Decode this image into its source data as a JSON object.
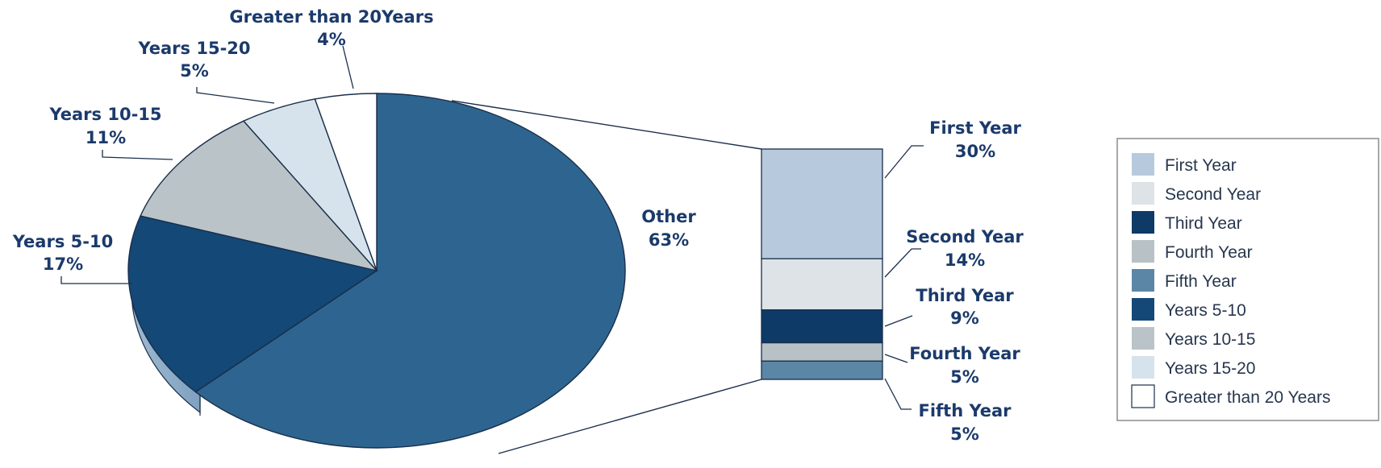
{
  "chart_data": {
    "type": "pie",
    "pie": {
      "slices": [
        {
          "label": "Other",
          "value": 63,
          "value_label": "63%"
        },
        {
          "label": "Years 5-10",
          "value": 17,
          "value_label": "17%"
        },
        {
          "label": "Years 10-15",
          "value": 11,
          "value_label": "11%"
        },
        {
          "label": "Years 15-20",
          "value": 5,
          "value_label": "5%"
        },
        {
          "label": "Greater than 20Years",
          "value": 4,
          "value_label": "4%"
        }
      ]
    },
    "breakdown_of": "Other",
    "bar": {
      "segments": [
        {
          "label": "First Year",
          "value": 30,
          "value_label": "30%"
        },
        {
          "label": "Second Year",
          "value": 14,
          "value_label": "14%"
        },
        {
          "label": "Third Year",
          "value": 9,
          "value_label": "9%"
        },
        {
          "label": "Fourth Year",
          "value": 5,
          "value_label": "5%"
        },
        {
          "label": "Fifth Year",
          "value": 5,
          "value_label": "5%"
        }
      ]
    },
    "legend": {
      "placement": "right",
      "items": [
        {
          "label": "First Year",
          "color": "#b7cadd"
        },
        {
          "label": "Second Year",
          "color": "#dde3e6"
        },
        {
          "label": "Third Year",
          "color": "#0d3a66"
        },
        {
          "label": "Fourth Year",
          "color": "#b8c2c6"
        },
        {
          "label": "Fifth Year",
          "color": "#5b86a6"
        },
        {
          "label": "Years 5-10",
          "color": "#134877"
        },
        {
          "label": "Years 10-15",
          "color": "#bac4c8"
        },
        {
          "label": "Years 15-20",
          "color": "#d7e3ec"
        },
        {
          "label": "Greater than 20 Years",
          "color": "#ffffff"
        }
      ]
    },
    "colors": {
      "other": "#2e6590",
      "years_5_10": "#134877",
      "years_10_15": "#bac4c8",
      "years_15_20": "#d7e3ec",
      "greater_20": "#ffffff",
      "label_text": "#1b3a6b",
      "outline": "#1a2e4a"
    }
  }
}
